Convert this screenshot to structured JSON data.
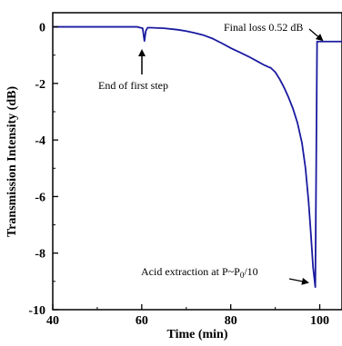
{
  "chart_data": {
    "type": "line",
    "title": "",
    "xlabel": "Time (min)",
    "ylabel": "Transmission Intensity (dB)",
    "xlim": [
      40,
      105
    ],
    "ylim": [
      -10,
      0.5
    ],
    "x_ticks": [
      40,
      60,
      80,
      100
    ],
    "x_tick_labels": [
      "40",
      "60",
      "80",
      "100"
    ],
    "y_ticks": [
      0,
      -2,
      -4,
      -6,
      -8,
      -10
    ],
    "y_tick_labels": [
      "0",
      "-2",
      "-4",
      "-6",
      "-8",
      "-10"
    ],
    "grid": false,
    "legend": "none",
    "series": [
      {
        "color": "#1a1aa0",
        "x": [
          40,
          50,
          55,
          59,
          60.2,
          60.6,
          60.9,
          61.3,
          62,
          65,
          68,
          70,
          72,
          74,
          76,
          78,
          80,
          82,
          84,
          86,
          87.5,
          88.5,
          89,
          90,
          91,
          92,
          93,
          94,
          95,
          96,
          96.8,
          97.5,
          98,
          98.5,
          99,
          99.2,
          99.4,
          100,
          102,
          105
        ],
        "y": [
          0,
          0,
          0,
          0,
          -0.05,
          -0.5,
          -0.15,
          -0.03,
          -0.03,
          -0.05,
          -0.1,
          -0.15,
          -0.22,
          -0.3,
          -0.42,
          -0.58,
          -0.75,
          -0.9,
          -1.05,
          -1.22,
          -1.35,
          -1.42,
          -1.45,
          -1.6,
          -1.85,
          -2.15,
          -2.5,
          -2.9,
          -3.4,
          -4.1,
          -5.0,
          -6.2,
          -7.3,
          -8.5,
          -9.2,
          -5.0,
          -0.52,
          -0.52,
          -0.52,
          -0.52
        ]
      }
    ],
    "annotations": [
      {
        "text": "End of first step",
        "x": 60.5,
        "y": -0.55,
        "arrow": "up"
      },
      {
        "text": "Final loss 0.52 dB",
        "x": 100.5,
        "y": -0.52,
        "arrow": "down-right"
      },
      {
        "text": "Acid extraction at P~P0/10",
        "x": 99,
        "y": -9.15,
        "arrow": "right"
      }
    ]
  }
}
